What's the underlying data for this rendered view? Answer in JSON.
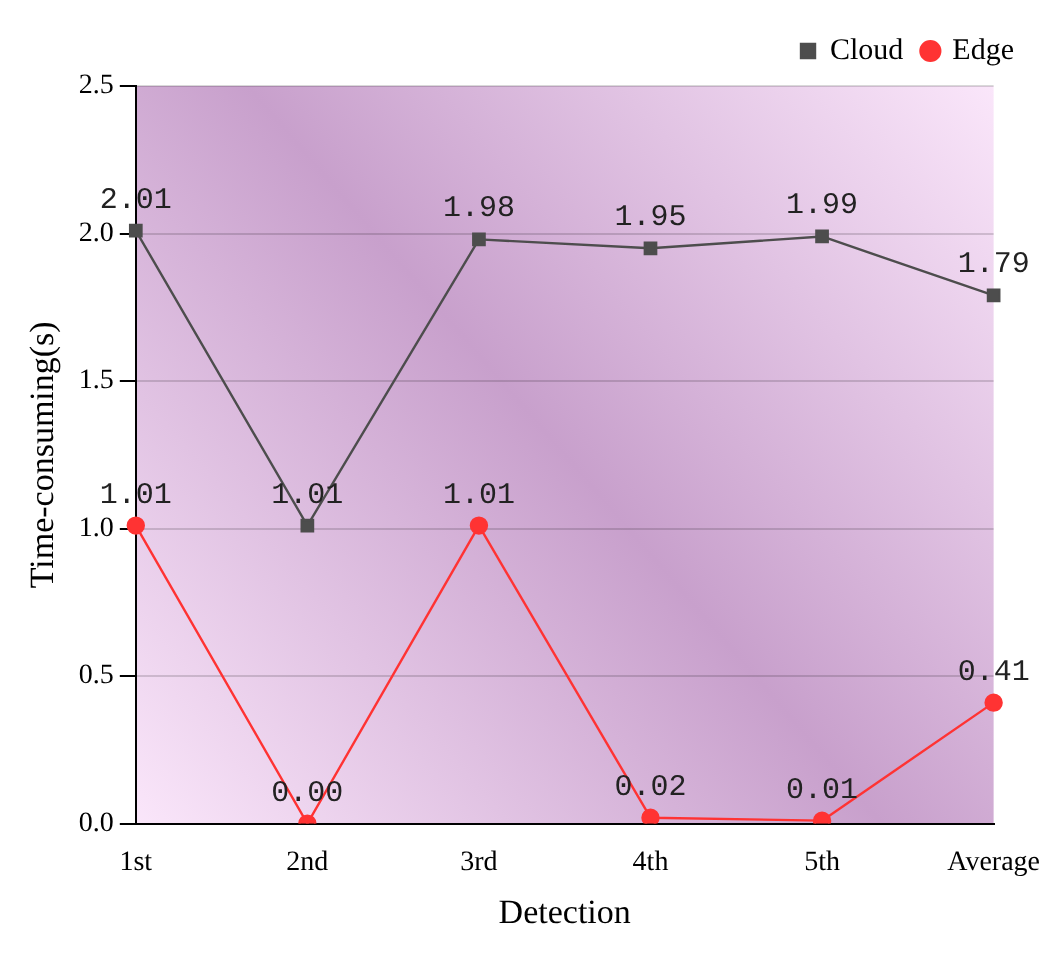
{
  "chart_data": {
    "type": "line",
    "xlabel": "Detection",
    "ylabel": "Time-consuming(s)",
    "categories": [
      "1st",
      "2nd",
      "3rd",
      "4th",
      "5th",
      "Average"
    ],
    "series": [
      {
        "name": "Cloud",
        "color": "#4d4d4d",
        "marker": "square",
        "values": [
          2.01,
          1.01,
          1.98,
          1.95,
          1.99,
          1.79
        ],
        "value_labels": [
          "2.01",
          "1.01",
          "1.98",
          "1.95",
          "1.99",
          "1.79"
        ]
      },
      {
        "name": "Edge",
        "color": "#ff3333",
        "marker": "circle",
        "values": [
          1.01,
          0.0,
          1.01,
          0.02,
          0.01,
          0.41
        ],
        "value_labels": [
          "1.01",
          "0.00",
          "1.01",
          "0.02",
          "0.01",
          "0.41"
        ]
      }
    ],
    "ylim": [
      0,
      2.5
    ],
    "yticks": [
      {
        "value": 0,
        "label": "0.0"
      },
      {
        "value": 0.5,
        "label": "0.5"
      },
      {
        "value": 1,
        "label": "1.0"
      },
      {
        "value": 1.5,
        "label": "1.5"
      },
      {
        "value": 2,
        "label": "2.0"
      },
      {
        "value": 2.5,
        "label": "2.5"
      }
    ],
    "grid": "y",
    "legend": "top right",
    "line_style": "solid"
  }
}
